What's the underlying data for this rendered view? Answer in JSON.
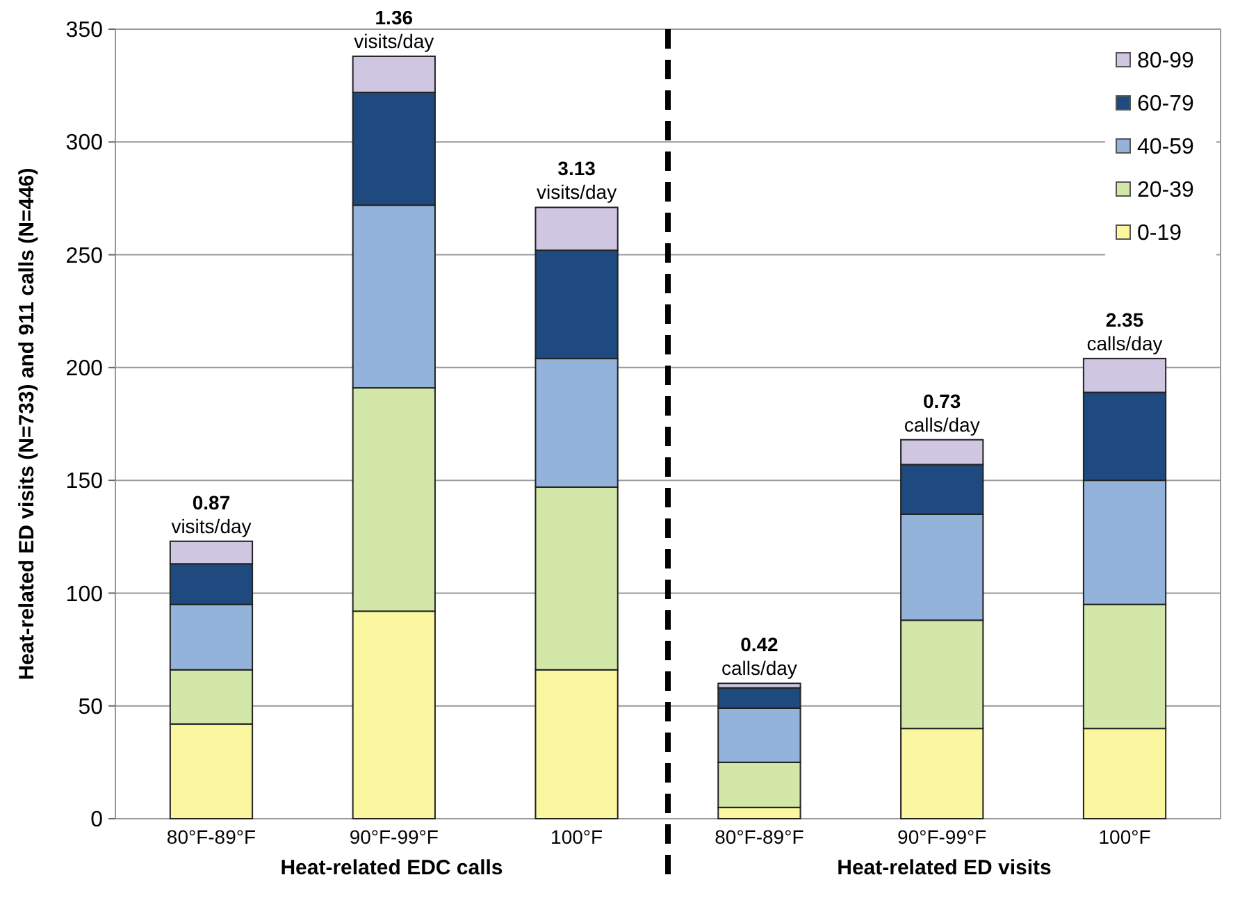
{
  "chart_data": {
    "type": "bar",
    "stacked": true,
    "ylabel": "Heat-related ED visits (N=733) and 911 calls (N=446)",
    "categories": [
      "80°F-89°F",
      "90°F-99°F",
      "100°F",
      "80°F-89°F",
      "90°F-99°F",
      "100°F"
    ],
    "series": [
      {
        "name": "0-19",
        "color": "#fbf7a0",
        "values": [
          42,
          92,
          66,
          5,
          40,
          40
        ]
      },
      {
        "name": "20-39",
        "color": "#d3e8a8",
        "values": [
          24,
          99,
          81,
          20,
          48,
          55
        ]
      },
      {
        "name": "40-59",
        "color": "#94b3da",
        "values": [
          29,
          81,
          57,
          24,
          47,
          55
        ]
      },
      {
        "name": "60-79",
        "color": "#1f4a80",
        "values": [
          18,
          50,
          48,
          9,
          22,
          39
        ]
      },
      {
        "name": "80-99",
        "color": "#cfc6e2",
        "values": [
          10,
          16,
          19,
          2,
          11,
          15
        ]
      }
    ],
    "ylim": [
      0,
      350
    ],
    "yticks": [
      0,
      50,
      100,
      150,
      200,
      250,
      300,
      350
    ],
    "grid": "y",
    "legend": "top right",
    "annotations": [
      "0.87 visits/day",
      "1.36 visits/day",
      "3.13 visits/day",
      "0.42 calls/day",
      "0.73 calls/day",
      "2.35 calls/day",
      "Heat-related EDC calls",
      "Heat-related ED visits"
    ]
  }
}
